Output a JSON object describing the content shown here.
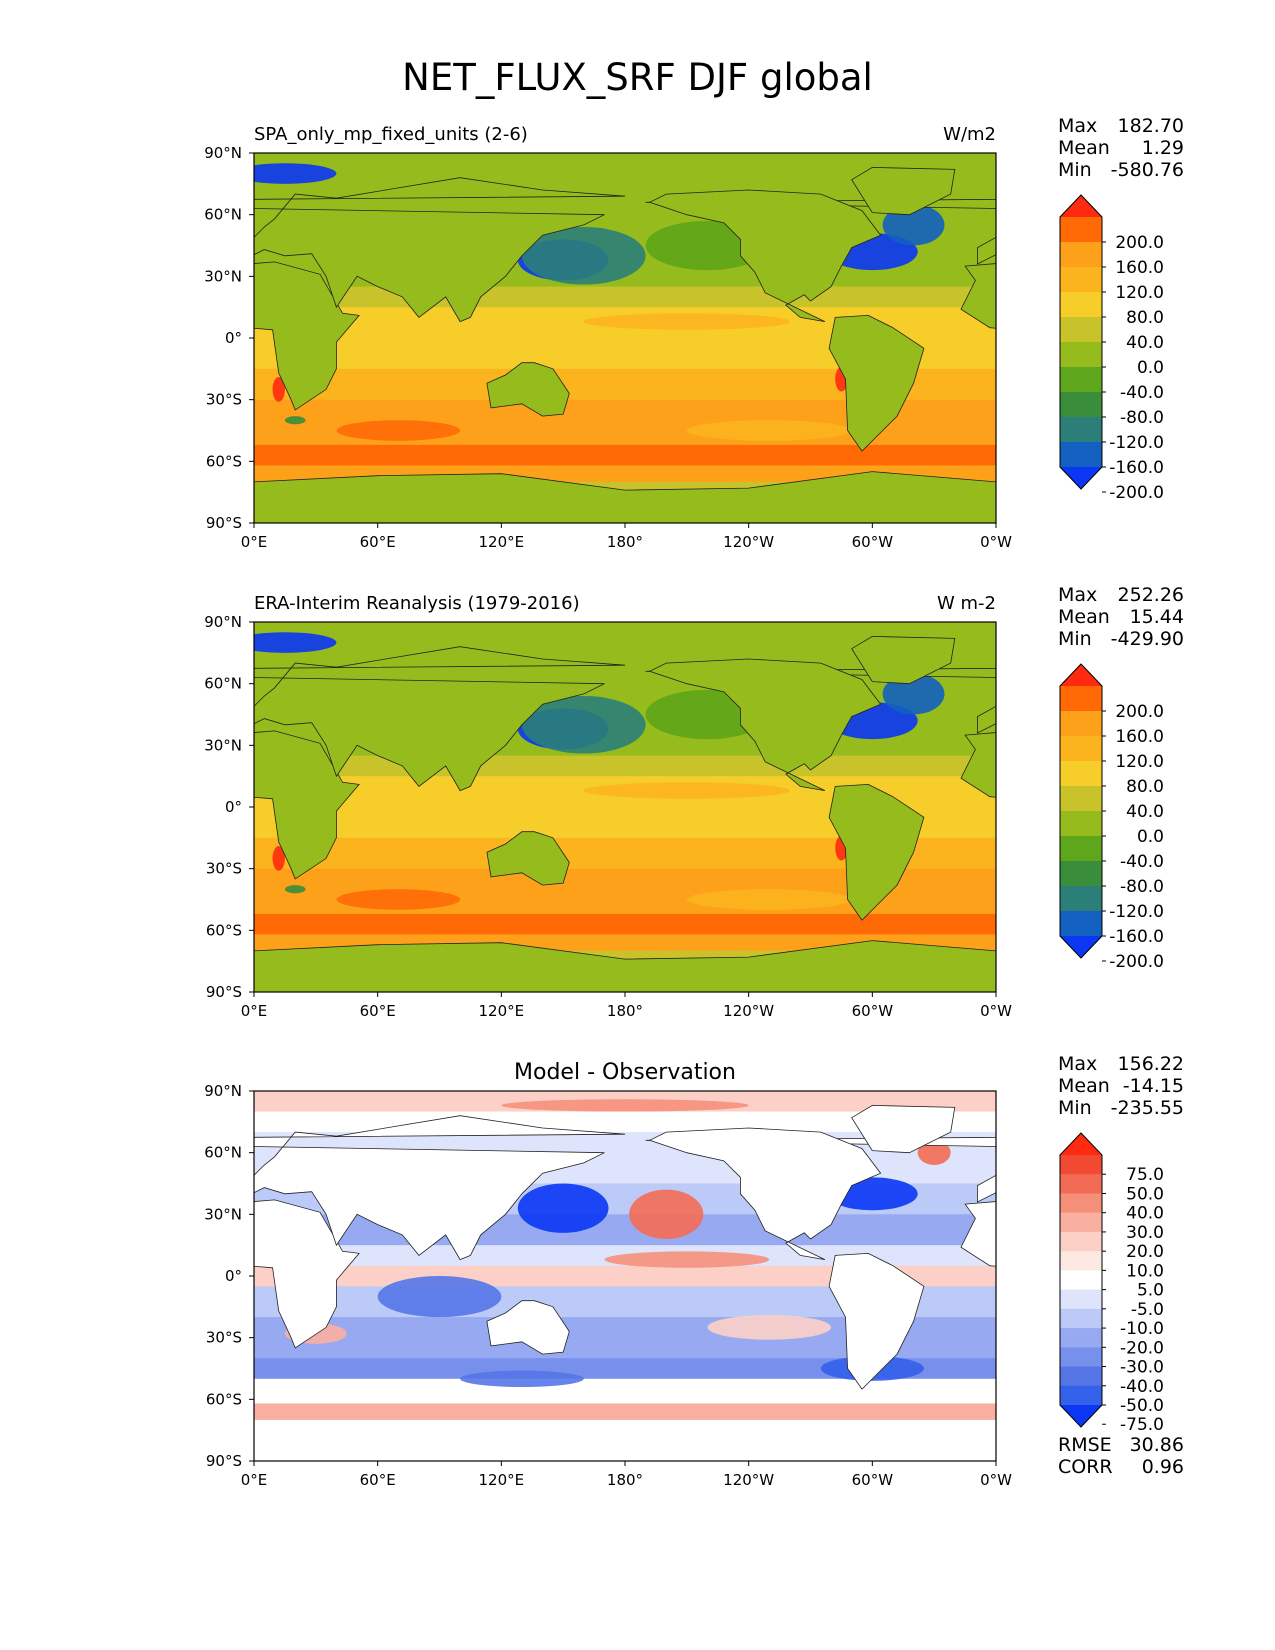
{
  "figure": {
    "title": "NET_FLUX_SRF DJF global"
  },
  "axes": {
    "lat_ticks": [
      "90°N",
      "60°N",
      "30°N",
      "0°",
      "30°S",
      "60°S",
      "90°S"
    ],
    "lon_ticks": [
      "0°E",
      "60°E",
      "120°E",
      "180°",
      "120°W",
      "60°W",
      "0°W"
    ]
  },
  "chart_data": [
    {
      "type": "heatmap",
      "left_title": "SPA_only_mp_fixed_units (2-6)",
      "center_title": "",
      "units": "W/m2",
      "stats": [
        {
          "label": "Max",
          "value": "182.70"
        },
        {
          "label": "Mean",
          "value": "1.29"
        },
        {
          "label": "Min",
          "value": "-580.76"
        }
      ],
      "colorbar": {
        "levels": [
          "200.0",
          "160.0",
          "120.0",
          "80.0",
          "40.0",
          "0.0",
          "-40.0",
          "-80.0",
          "-120.0",
          "-160.0",
          "-200.0"
        ],
        "colors": [
          "#ff2a0f",
          "#ff6a07",
          "#fda11a",
          "#fcb41e",
          "#f7cd2a",
          "#c9c32b",
          "#96bb1c",
          "#5ea61b",
          "#3a8d3a",
          "#2b7f78",
          "#1260c0",
          "#0a36f4"
        ],
        "extend": "both"
      },
      "metrics": []
    },
    {
      "type": "heatmap",
      "left_title": "ERA-Interim Reanalysis (1979-2016)",
      "center_title": "",
      "units": "W m-2",
      "stats": [
        {
          "label": "Max",
          "value": "252.26"
        },
        {
          "label": "Mean",
          "value": "15.44"
        },
        {
          "label": "Min",
          "value": "-429.90"
        }
      ],
      "colorbar": {
        "levels": [
          "200.0",
          "160.0",
          "120.0",
          "80.0",
          "40.0",
          "0.0",
          "-40.0",
          "-80.0",
          "-120.0",
          "-160.0",
          "-200.0"
        ],
        "colors": [
          "#ff2a0f",
          "#ff6a07",
          "#fda11a",
          "#fcb41e",
          "#f7cd2a",
          "#c9c32b",
          "#96bb1c",
          "#5ea61b",
          "#3a8d3a",
          "#2b7f78",
          "#1260c0",
          "#0a36f4"
        ],
        "extend": "both"
      },
      "metrics": []
    },
    {
      "type": "heatmap",
      "left_title": "",
      "center_title": "Model - Observation",
      "units": "",
      "stats": [
        {
          "label": "Max",
          "value": "156.22"
        },
        {
          "label": "Mean",
          "value": "-14.15"
        },
        {
          "label": "Min",
          "value": "-235.55"
        }
      ],
      "colorbar": {
        "levels": [
          "75.0",
          "50.0",
          "40.0",
          "30.0",
          "20.0",
          "10.0",
          "5.0",
          "-5.0",
          "-10.0",
          "-20.0",
          "-30.0",
          "-40.0",
          "-50.0",
          "-75.0"
        ],
        "colors": [
          "#ff2a0f",
          "#f24a32",
          "#f46b55",
          "#f68f7a",
          "#f9b0a1",
          "#fcd0c6",
          "#fde8e2",
          "#ffffff",
          "#dde4fb",
          "#bccaf7",
          "#97aaf1",
          "#7690ec",
          "#5575e7",
          "#3461ea",
          "#0a36f4"
        ],
        "extend": "both"
      },
      "metrics": [
        {
          "label": "RMSE",
          "value": "30.86"
        },
        {
          "label": "CORR",
          "value": "0.96"
        }
      ]
    }
  ]
}
